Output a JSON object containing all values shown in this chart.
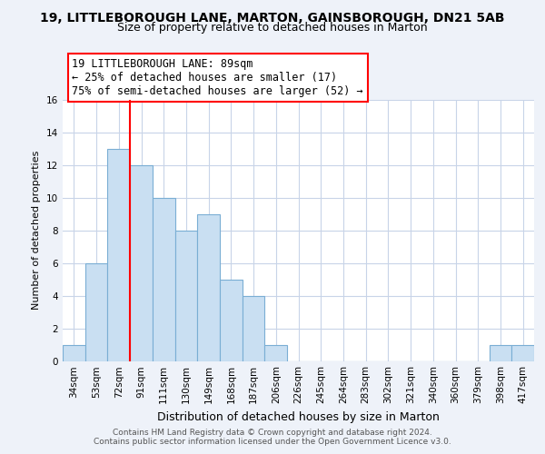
{
  "title_line1": "19, LITTLEBOROUGH LANE, MARTON, GAINSBOROUGH, DN21 5AB",
  "title_line2": "Size of property relative to detached houses in Marton",
  "xlabel": "Distribution of detached houses by size in Marton",
  "ylabel": "Number of detached properties",
  "bin_labels": [
    "34sqm",
    "53sqm",
    "72sqm",
    "91sqm",
    "111sqm",
    "130sqm",
    "149sqm",
    "168sqm",
    "187sqm",
    "206sqm",
    "226sqm",
    "245sqm",
    "264sqm",
    "283sqm",
    "302sqm",
    "321sqm",
    "340sqm",
    "360sqm",
    "379sqm",
    "398sqm",
    "417sqm"
  ],
  "bar_heights": [
    1,
    6,
    13,
    12,
    10,
    8,
    9,
    5,
    4,
    1,
    0,
    0,
    0,
    0,
    0,
    0,
    0,
    0,
    0,
    1,
    1
  ],
  "bar_color": "#c9dff2",
  "bar_edge_color": "#7aaed4",
  "ylim": [
    0,
    16
  ],
  "yticks": [
    0,
    2,
    4,
    6,
    8,
    10,
    12,
    14,
    16
  ],
  "ann_line1": "19 LITTLEBOROUGH LANE: 89sqm",
  "ann_line2": "← 25% of detached houses are smaller (17)",
  "ann_line3": "75% of semi-detached houses are larger (52) →",
  "red_line_bin_index": 3,
  "footer_line1": "Contains HM Land Registry data © Crown copyright and database right 2024.",
  "footer_line2": "Contains public sector information licensed under the Open Government Licence v3.0.",
  "background_color": "#eef2f9",
  "plot_bg_color": "#ffffff",
  "grid_color": "#c8d4e8",
  "title_fontsize": 10,
  "subtitle_fontsize": 9,
  "ylabel_fontsize": 8,
  "xlabel_fontsize": 9,
  "tick_fontsize": 7.5,
  "ann_fontsize": 8.5,
  "footer_fontsize": 6.5
}
